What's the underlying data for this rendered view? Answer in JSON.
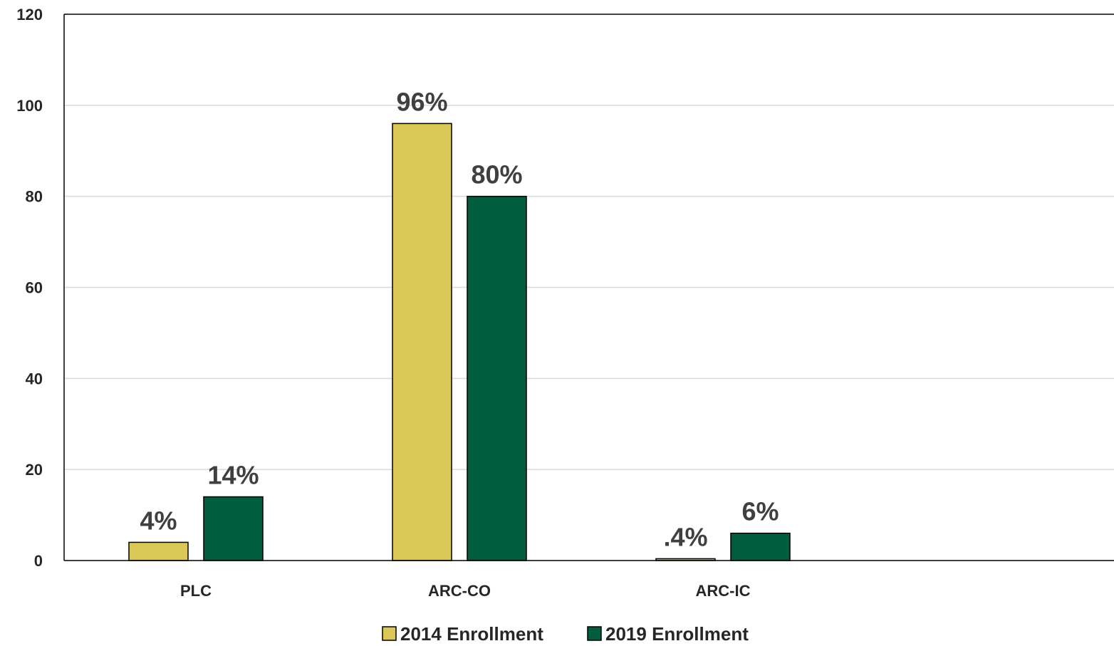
{
  "chart_data": {
    "type": "bar",
    "categories": [
      "PLC",
      "ARC-CO",
      "ARC-IC"
    ],
    "series": [
      {
        "name": "2014 Enrollment",
        "values": [
          4,
          96,
          0.4
        ],
        "labels": [
          "4%",
          "96%",
          ".4%"
        ],
        "color": "#d9c756"
      },
      {
        "name": "2019 Enrollment",
        "values": [
          14,
          80,
          6
        ],
        "labels": [
          "14%",
          "80%",
          "6%"
        ],
        "color": "#005e3f"
      }
    ],
    "ylim": [
      0,
      120
    ],
    "yticks": [
      0,
      20,
      40,
      60,
      80,
      100,
      120
    ],
    "ytick_labels": [
      "0",
      "20",
      "40",
      "60",
      "80",
      "100",
      "120"
    ],
    "grid": true,
    "legend_position": "bottom",
    "title": "",
    "xlabel": "",
    "ylabel": ""
  }
}
